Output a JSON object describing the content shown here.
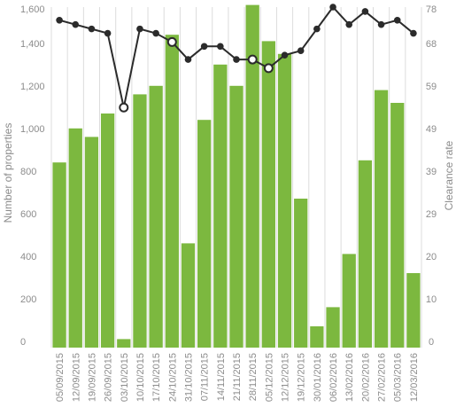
{
  "chart_data": {
    "type": "bar",
    "categories": [
      "05/09/2015",
      "12/09/2015",
      "19/09/2015",
      "26/09/2015",
      "03/10/2015",
      "10/10/2015",
      "17/10/2015",
      "24/10/2015",
      "31/10/2015",
      "07/11/2015",
      "14/11/2015",
      "21/11/2015",
      "28/11/2015",
      "05/12/2015",
      "12/12/2015",
      "19/12/2015",
      "30/01/2016",
      "06/02/2016",
      "13/02/2016",
      "20/02/2016",
      "27/02/2016",
      "05/03/2016",
      "12/03/2016"
    ],
    "series": [
      {
        "kind": "bar",
        "axis": "left",
        "color": "#7cb83f",
        "values": [
          870,
          1030,
          990,
          1100,
          40,
          1190,
          1230,
          1470,
          490,
          1070,
          1330,
          1230,
          1610,
          1440,
          1380,
          700,
          100,
          190,
          440,
          880,
          1210,
          1150,
          350
        ]
      },
      {
        "kind": "line",
        "axis": "right",
        "color": "#2b2b2b",
        "values": [
          75,
          74,
          73,
          72,
          55,
          73,
          72,
          70,
          66,
          69,
          69,
          66,
          66,
          64,
          67,
          68,
          73,
          78,
          74,
          77,
          74,
          75,
          72
        ],
        "highlighted": [
          4,
          7,
          12,
          13
        ]
      }
    ],
    "ylabel": "Number of properties",
    "y2label": "Clearance rate",
    "ylim": [
      0,
      1600
    ],
    "y2lim": [
      0,
      78
    ],
    "yticks": [
      "0",
      "200",
      "400",
      "600",
      "800",
      "1,000",
      "1,200",
      "1,400",
      "1,600"
    ],
    "y2ticks": [
      "0",
      "10",
      "20",
      "29",
      "39",
      "49",
      "59",
      "68",
      "78"
    ],
    "grid": "vertical"
  }
}
